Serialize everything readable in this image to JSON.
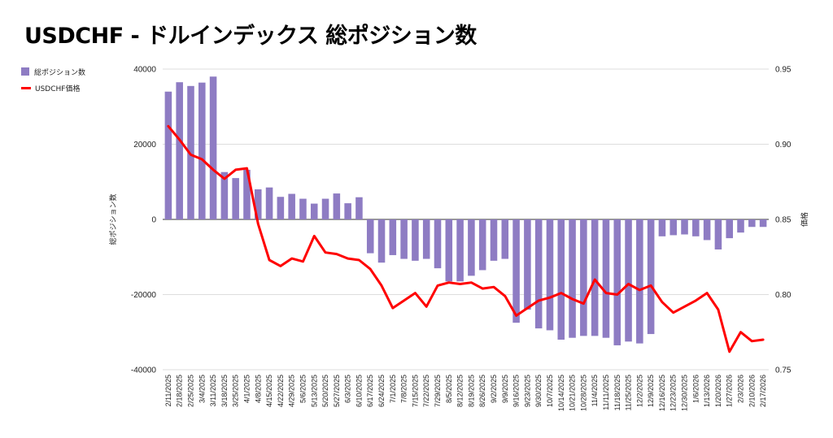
{
  "chart_data": {
    "title": "USDCHF - ドルインデックス 総ポジション数",
    "type": "bar+line",
    "legend": [
      {
        "name": "総ポジション数",
        "color": "#8e7cc3",
        "kind": "bar"
      },
      {
        "name": "USDCHF価格",
        "color": "#ff0000",
        "kind": "line"
      }
    ],
    "legend_placement": "top-left",
    "y_left_label": "総ポジション数",
    "y_right_label": "価格",
    "y_left_range": [
      -40000,
      40000
    ],
    "y_left_ticks": [
      "40000",
      "20000",
      "0",
      "-20000",
      "-40000"
    ],
    "y_right_range": [
      0.75,
      0.95
    ],
    "y_right_ticks": [
      "0.95",
      "0.90",
      "0.85",
      "0.80",
      "0.75"
    ],
    "grid": true,
    "categories": [
      "2/11/2025",
      "2/18/2025",
      "2/25/2025",
      "3/4/2025",
      "3/11/2025",
      "3/18/2025",
      "3/25/2025",
      "4/1/2025",
      "4/8/2025",
      "4/15/2025",
      "4/22/2025",
      "4/29/2025",
      "5/6/2025",
      "5/13/2025",
      "5/20/2025",
      "5/27/2025",
      "6/3/2025",
      "6/10/2025",
      "6/17/2025",
      "6/24/2025",
      "7/1/2025",
      "7/8/2025",
      "7/15/2025",
      "7/22/2025",
      "7/29/2025",
      "8/5/2025",
      "8/12/2025",
      "8/19/2025",
      "8/26/2025",
      "9/2/2025",
      "9/9/2025",
      "9/16/2025",
      "9/23/2025",
      "9/30/2025",
      "10/7/2025",
      "10/14/2025",
      "10/21/2025",
      "10/28/2025",
      "11/4/2025",
      "11/11/2025",
      "11/18/2025",
      "11/25/2025",
      "12/2/2025",
      "12/9/2025",
      "12/16/2025",
      "12/23/2025",
      "12/30/2025",
      "1/6/2026",
      "1/13/2026",
      "1/20/2026",
      "1/27/2026",
      "2/3/2026",
      "2/10/2026",
      "2/17/2026"
    ],
    "x_tick_labels": [
      "2/11/2025",
      "2/18/2025",
      "2/25/2025",
      "3/4/2025",
      "3/11/2025",
      "3/18/2025",
      "3/25/2025",
      "4/1/2025",
      "4/8/2025",
      "4/15/2025",
      "4/22/2025",
      "4/29/2025",
      "5/6/2025",
      "5/13/2025",
      "5/20/2025",
      "5/27/2025",
      "6/3/2025",
      "6/10/2025",
      "6/17/2025",
      "6/24/2025",
      "7/1/2025",
      "7/8/2025",
      "7/15/2025",
      "7/22/2025",
      "7/29/2025",
      "8/5/2025",
      "8/12/2025",
      "8/19/2025",
      "8/26/2025",
      "9/2/2025",
      "9/9/2025",
      "9/16/2025",
      "9/23/2025",
      "9/30/2025",
      "10/7/2025",
      "10/14/2025",
      "10/21/2025",
      "10/28/2025",
      "11/4/2025",
      "11/11/2025",
      "11/18/2025",
      "11/25/2025",
      "12/2/2025",
      "12/9/2025",
      "12/16/2025",
      "12/23/2025",
      "12/30/2025",
      "1/6/2026",
      "1/13/2026",
      "1/20/2026",
      "1/27/2026",
      "2/3/2026",
      "2/10/2026",
      "2/17/2026"
    ],
    "series": [
      {
        "name": "総ポジション数",
        "type": "bar",
        "color": "#8e7cc3",
        "values": [
          34000,
          36500,
          35500,
          36400,
          38000,
          12600,
          11000,
          13200,
          8000,
          8500,
          6000,
          6800,
          5500,
          4200,
          5500,
          6900,
          4300,
          5900,
          -9000,
          -11500,
          -9500,
          -10500,
          -11000,
          -10500,
          -13000,
          -16500,
          -16500,
          -15000,
          -13500,
          -11000,
          -10500,
          -27500,
          -24000,
          -29000,
          -29500,
          -32000,
          -31500,
          -31000,
          -31000,
          -31500,
          -33500,
          -32500,
          -33000,
          -30500,
          -4500,
          -4200,
          -4000,
          -4500,
          -5500,
          -8000,
          -5000,
          -3500,
          -2000,
          -2000
        ]
      },
      {
        "name": "USDCHF価格",
        "type": "line",
        "color": "#ff0000",
        "values": [
          0.912,
          0.903,
          0.893,
          0.89,
          0.883,
          0.877,
          0.883,
          0.884,
          0.847,
          0.823,
          0.819,
          0.824,
          0.822,
          0.839,
          0.828,
          0.827,
          0.824,
          0.823,
          0.817,
          0.806,
          0.791,
          0.796,
          0.801,
          0.792,
          0.806,
          0.808,
          0.807,
          0.808,
          0.804,
          0.805,
          0.799,
          0.786,
          0.791,
          0.796,
          0.798,
          0.801,
          0.797,
          0.794,
          0.81,
          0.801,
          0.8,
          0.807,
          0.803,
          0.806,
          0.795,
          0.788,
          0.792,
          0.796,
          0.801,
          0.79,
          0.762,
          0.775,
          0.769,
          0.77
        ]
      }
    ]
  }
}
